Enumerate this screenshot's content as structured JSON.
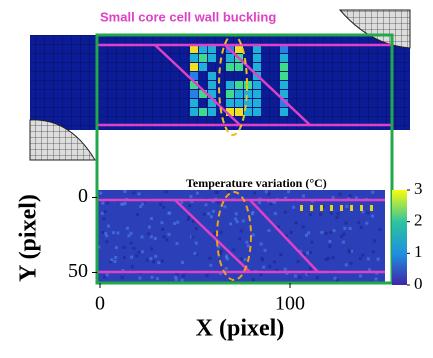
{
  "annotations": {
    "buckling": "Small core cell wall buckling",
    "temperature": "Temperature variation (°C)"
  },
  "axes": {
    "xlabel": "X (pixel)",
    "ylabel": "Y (pixel)",
    "xlim": [
      0,
      150
    ],
    "xticks": [
      0,
      100
    ],
    "ylim": [
      -5,
      57
    ],
    "yticks": [
      0,
      50
    ]
  },
  "colorbar": {
    "lim": [
      0,
      3
    ],
    "ticks": [
      0,
      1,
      2,
      3
    ]
  }
}
